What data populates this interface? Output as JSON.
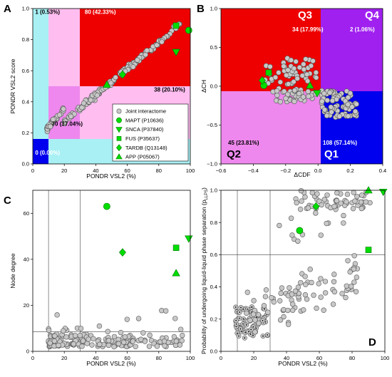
{
  "marker_green": "#00dd00",
  "chart_data": [
    {
      "panel": "A",
      "type": "scatter",
      "xlabel": "PONDR VSL2 (%)",
      "ylabel": "PONDR VSL2 score",
      "xlim": [
        0,
        100
      ],
      "ylim": [
        0,
        1
      ],
      "xticks": [
        "0",
        "20",
        "40",
        "60",
        "80",
        "100"
      ],
      "yticks": [
        "0.0",
        "0.2",
        "0.4",
        "0.6",
        "0.8",
        "1.0"
      ],
      "region_labels": [
        {
          "text": "1 (0.53%)",
          "x": 1.5,
          "y": 0.965,
          "color": "#000000"
        },
        {
          "text": "80 (42.33%)",
          "x": 33,
          "y": 0.965,
          "color": "#ffffff"
        },
        {
          "text": "38 (20.10%)",
          "x": 77,
          "y": 0.465,
          "color": "#000000"
        },
        {
          "text": "70 (37.04%)",
          "x": 12,
          "y": 0.245,
          "color": "#000000"
        },
        {
          "text": "0 (0.00%)",
          "x": 1.5,
          "y": 0.06,
          "color": "#ffffff"
        }
      ],
      "legend": [
        "Joint interactome",
        "MAPT (P10636)",
        "SNCA (P37840)",
        "FUS (P35637)",
        "TARDB (Q13148)",
        "APP (P05067)"
      ],
      "highlighted": [
        {
          "name": "MAPT (P10636)",
          "shape": "circle",
          "x": 99,
          "y": 0.86
        },
        {
          "name": "SNCA (P37840)",
          "shape": "tri-down",
          "x": 91,
          "y": 0.72
        },
        {
          "name": "FUS (P35637)",
          "shape": "square",
          "x": 91,
          "y": 0.89
        },
        {
          "name": "TARDB (Q13148)",
          "shape": "diamond",
          "x": 57,
          "y": 0.575
        },
        {
          "name": "APP (P05067)",
          "shape": "triangle",
          "x": 47,
          "y": 0.51
        }
      ]
    },
    {
      "panel": "B",
      "type": "scatter",
      "xlabel": "ΔCDF",
      "ylabel": "ΔCH",
      "xlim": [
        -0.6,
        0.4
      ],
      "ylim": [
        -1.0,
        1.0
      ],
      "xticks": [
        "−0.6",
        "−0.4",
        "−0.2",
        "0.0",
        "0.2",
        "0.4"
      ],
      "yticks": [
        "−1.0",
        "−0.5",
        "0.0",
        "0.5",
        "1.0"
      ],
      "quadrants": [
        {
          "name": "Q3",
          "count": "34 (17.99%)",
          "color": "#ee0000"
        },
        {
          "name": "Q4",
          "count": "2 (1.06%)",
          "color": "#a020f0"
        },
        {
          "name": "Q2",
          "count": "45 (23.81%)",
          "color": "#ee88ee"
        },
        {
          "name": "Q1",
          "count": "108 (57.14%)",
          "color": "#0000ee"
        }
      ],
      "highlighted": [
        {
          "name": "MAPT (P10636)",
          "shape": "circle",
          "x": -0.335,
          "y": 0.01
        },
        {
          "name": "SNCA (P37840)",
          "shape": "tri-down",
          "x": -0.005,
          "y": -0.09
        },
        {
          "name": "FUS (P35637)",
          "shape": "square",
          "x": -0.305,
          "y": 0.175
        },
        {
          "name": "TARDB (Q13148)",
          "shape": "diamond",
          "x": -0.345,
          "y": 0.075
        },
        {
          "name": "APP (P05067)",
          "shape": "triangle",
          "x": -0.05,
          "y": 0.01
        }
      ]
    },
    {
      "panel": "C",
      "type": "scatter",
      "xlabel": "PONDR VSL2 (%)",
      "ylabel": "Node degree",
      "xlim": [
        0,
        100
      ],
      "ylim": [
        0,
        70
      ],
      "xticks": [
        "0",
        "20",
        "40",
        "60",
        "80",
        "100"
      ],
      "yticks": [
        "0",
        "20",
        "40",
        "60"
      ],
      "reference_lines": {
        "x": [
          10,
          30
        ],
        "y": [
          8.5
        ]
      },
      "highlighted": [
        {
          "name": "MAPT (P10636)",
          "shape": "circle",
          "x": 47,
          "y": 63
        },
        {
          "name": "SNCA (P37840)",
          "shape": "tri-down",
          "x": 99,
          "y": 49
        },
        {
          "name": "FUS (P35637)",
          "shape": "square",
          "x": 91,
          "y": 45
        },
        {
          "name": "TARDB (Q13148)",
          "shape": "diamond",
          "x": 57,
          "y": 43
        },
        {
          "name": "APP (P05067)",
          "shape": "triangle",
          "x": 91,
          "y": 34
        }
      ]
    },
    {
      "panel": "D",
      "type": "scatter",
      "xlabel": "PONDR VSL2 (%)",
      "ylabel": "Probability of undergoing liquid-liquid phase separation (pLLPS)",
      "ylabel_main": "Probability of undergoing liquid-liquid phase separation (p",
      "ylabel_sub": "LLPS",
      "ylabel_end": ")",
      "xlim": [
        0,
        100
      ],
      "ylim": [
        0,
        1
      ],
      "xticks": [
        "0",
        "20",
        "40",
        "60",
        "80",
        "100"
      ],
      "yticks": [
        "0.0",
        "0.2",
        "0.4",
        "0.6",
        "0.8",
        "1.0"
      ],
      "reference_lines": {
        "x": [
          10,
          30
        ],
        "y": [
          0.6
        ]
      },
      "highlighted": [
        {
          "name": "MAPT (P10636)",
          "shape": "circle",
          "x": 48,
          "y": 0.75
        },
        {
          "name": "SNCA (P37840)",
          "shape": "tri-down",
          "x": 99,
          "y": 0.99
        },
        {
          "name": "FUS (P35637)",
          "shape": "square",
          "x": 90,
          "y": 0.63
        },
        {
          "name": "TARDB (Q13148)",
          "shape": "diamond",
          "x": 58,
          "y": 0.9
        },
        {
          "name": "APP (P05067)",
          "shape": "triangle",
          "x": 90,
          "y": 1.0
        }
      ]
    }
  ]
}
